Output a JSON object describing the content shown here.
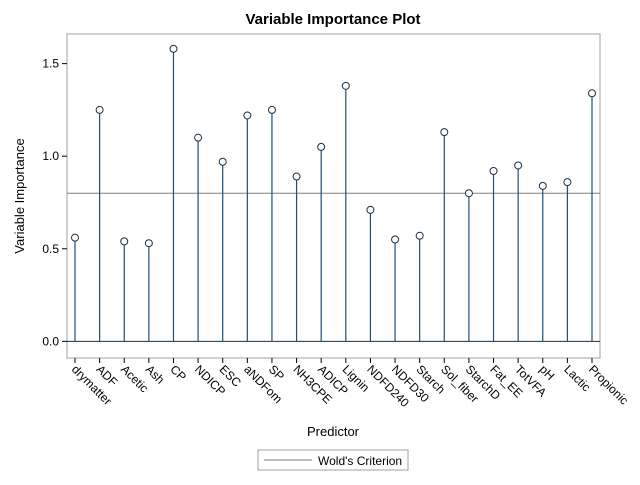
{
  "chart_data": {
    "type": "needle",
    "title": "Variable Importance Plot",
    "xlabel": "Predictor",
    "ylabel": "Variable Importance",
    "ylim": [
      -0.09,
      1.66
    ],
    "yticks": [
      "0.0",
      "0.5",
      "1.0",
      "1.5"
    ],
    "categories": [
      "drymatter",
      "ADF",
      "Acetic",
      "Ash",
      "CP",
      "NDICP",
      "ESC",
      "aNDFom",
      "SP",
      "NH3CPE",
      "ADICP",
      "Lignin",
      "NDFD240",
      "NDFD30",
      "Starch",
      "Sol_fiber",
      "StarchD",
      "Fat_EE",
      "TotVFA",
      "pH",
      "Lactic",
      "Propionic"
    ],
    "values": [
      0.56,
      1.25,
      0.54,
      0.53,
      1.58,
      1.1,
      0.97,
      1.22,
      1.25,
      0.89,
      1.05,
      1.38,
      0.71,
      0.55,
      0.57,
      1.13,
      0.8,
      0.92,
      0.95,
      0.84,
      0.86,
      1.34
    ],
    "reference_line": {
      "name": "Wold's Criterion",
      "value": 0.8
    },
    "legend": {
      "position": "bottom",
      "label": "Wold's Criterion"
    },
    "grid": false,
    "colors": {
      "needle": "#1f4e79",
      "marker_fill": "#ffffff",
      "marker_stroke": "#1f2f3f",
      "reference": "#7f7f7f",
      "frame": "#a0a0a0"
    }
  }
}
